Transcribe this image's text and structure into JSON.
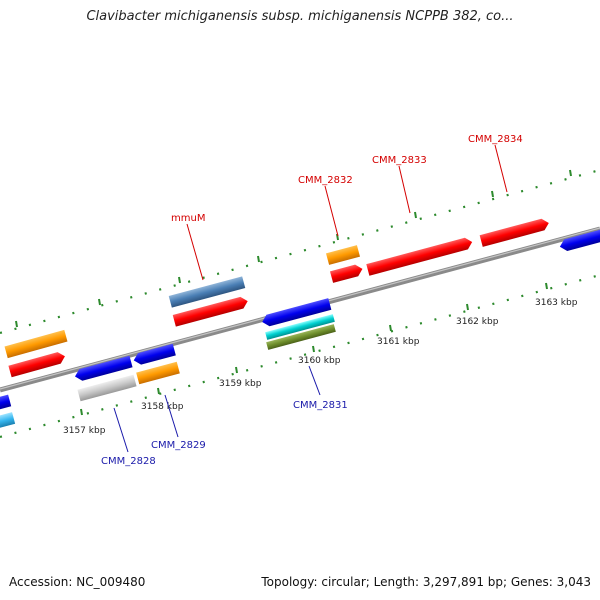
{
  "title": "Clavibacter michiganensis subsp. michiganensis NCPPB 382, co...",
  "footer": {
    "accession": "Accession: NC_009480",
    "topology": "Topology: circular; Length: 3,297,891 bp; Genes: 3,043"
  },
  "colors": {
    "backbone": "#8a8a8a",
    "tick": "#2d8a2d",
    "plus_label": "#d40000",
    "minus_label": "#1a1aaa"
  },
  "scale_ticks": [
    "3157 kbp",
    "3158 kbp",
    "3159 kbp",
    "3160 kbp",
    "3161 kbp",
    "3162 kbp",
    "3163 kbp"
  ],
  "gene_labels": {
    "plus": [
      "mmuM",
      "CMM_2832",
      "CMM_2833",
      "CMM_2834"
    ],
    "minus": [
      "CMM_2828",
      "CMM_2829",
      "CMM_2831"
    ]
  }
}
